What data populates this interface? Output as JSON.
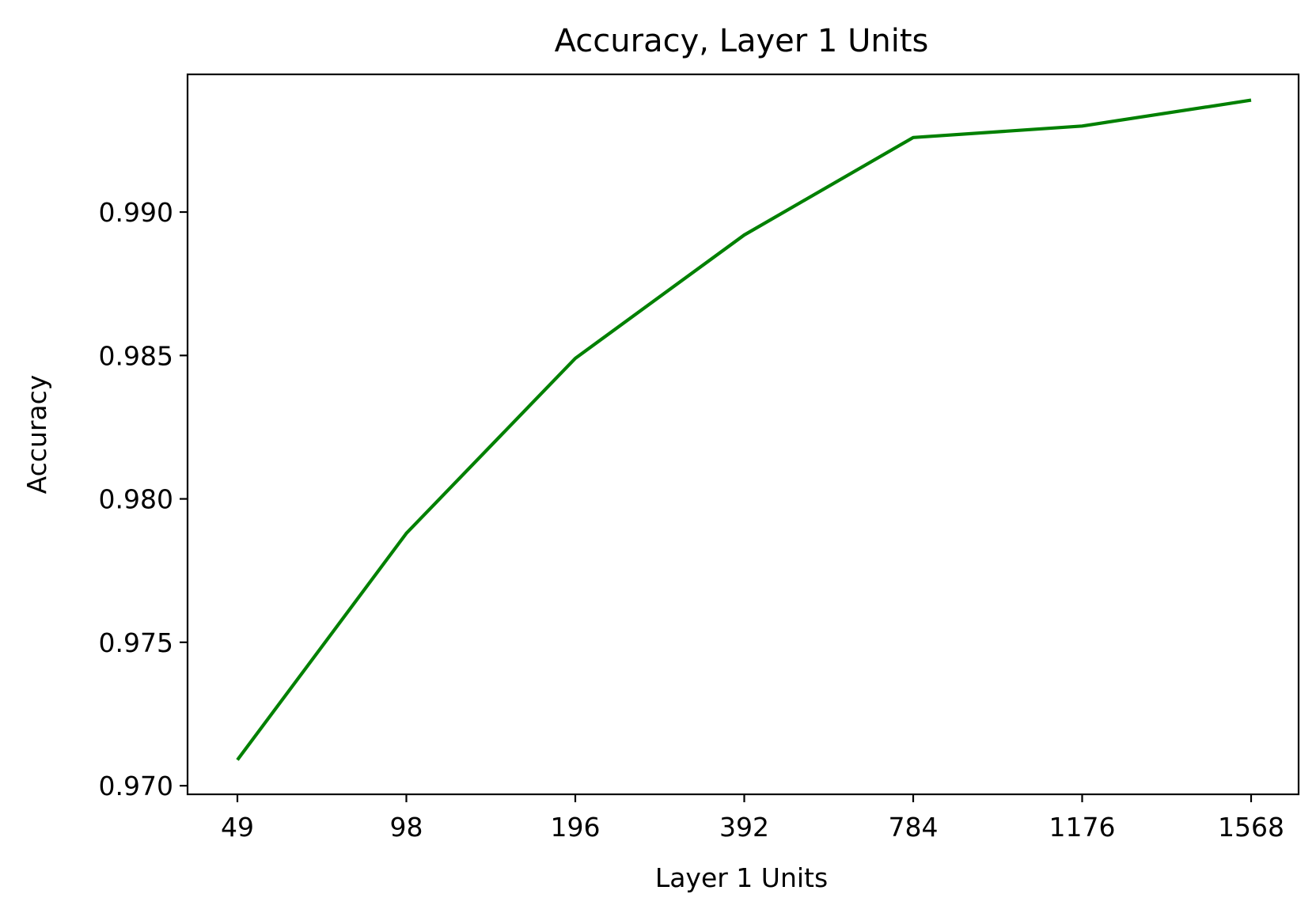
{
  "chart_data": {
    "type": "line",
    "title": "Accuracy, Layer 1 Units",
    "xlabel": "Layer 1 Units",
    "ylabel": "Accuracy",
    "categories": [
      "49",
      "98",
      "196",
      "392",
      "784",
      "1176",
      "1568"
    ],
    "series": [
      {
        "values": [
          0.9709,
          0.9788,
          0.9849,
          0.9892,
          0.9926,
          0.993,
          0.9939
        ],
        "color": "#008000"
      }
    ],
    "yticks": [
      "0.970",
      "0.975",
      "0.980",
      "0.985",
      "0.990"
    ],
    "ylim": [
      0.9697,
      0.9948
    ],
    "grid": false,
    "legend": "none"
  }
}
